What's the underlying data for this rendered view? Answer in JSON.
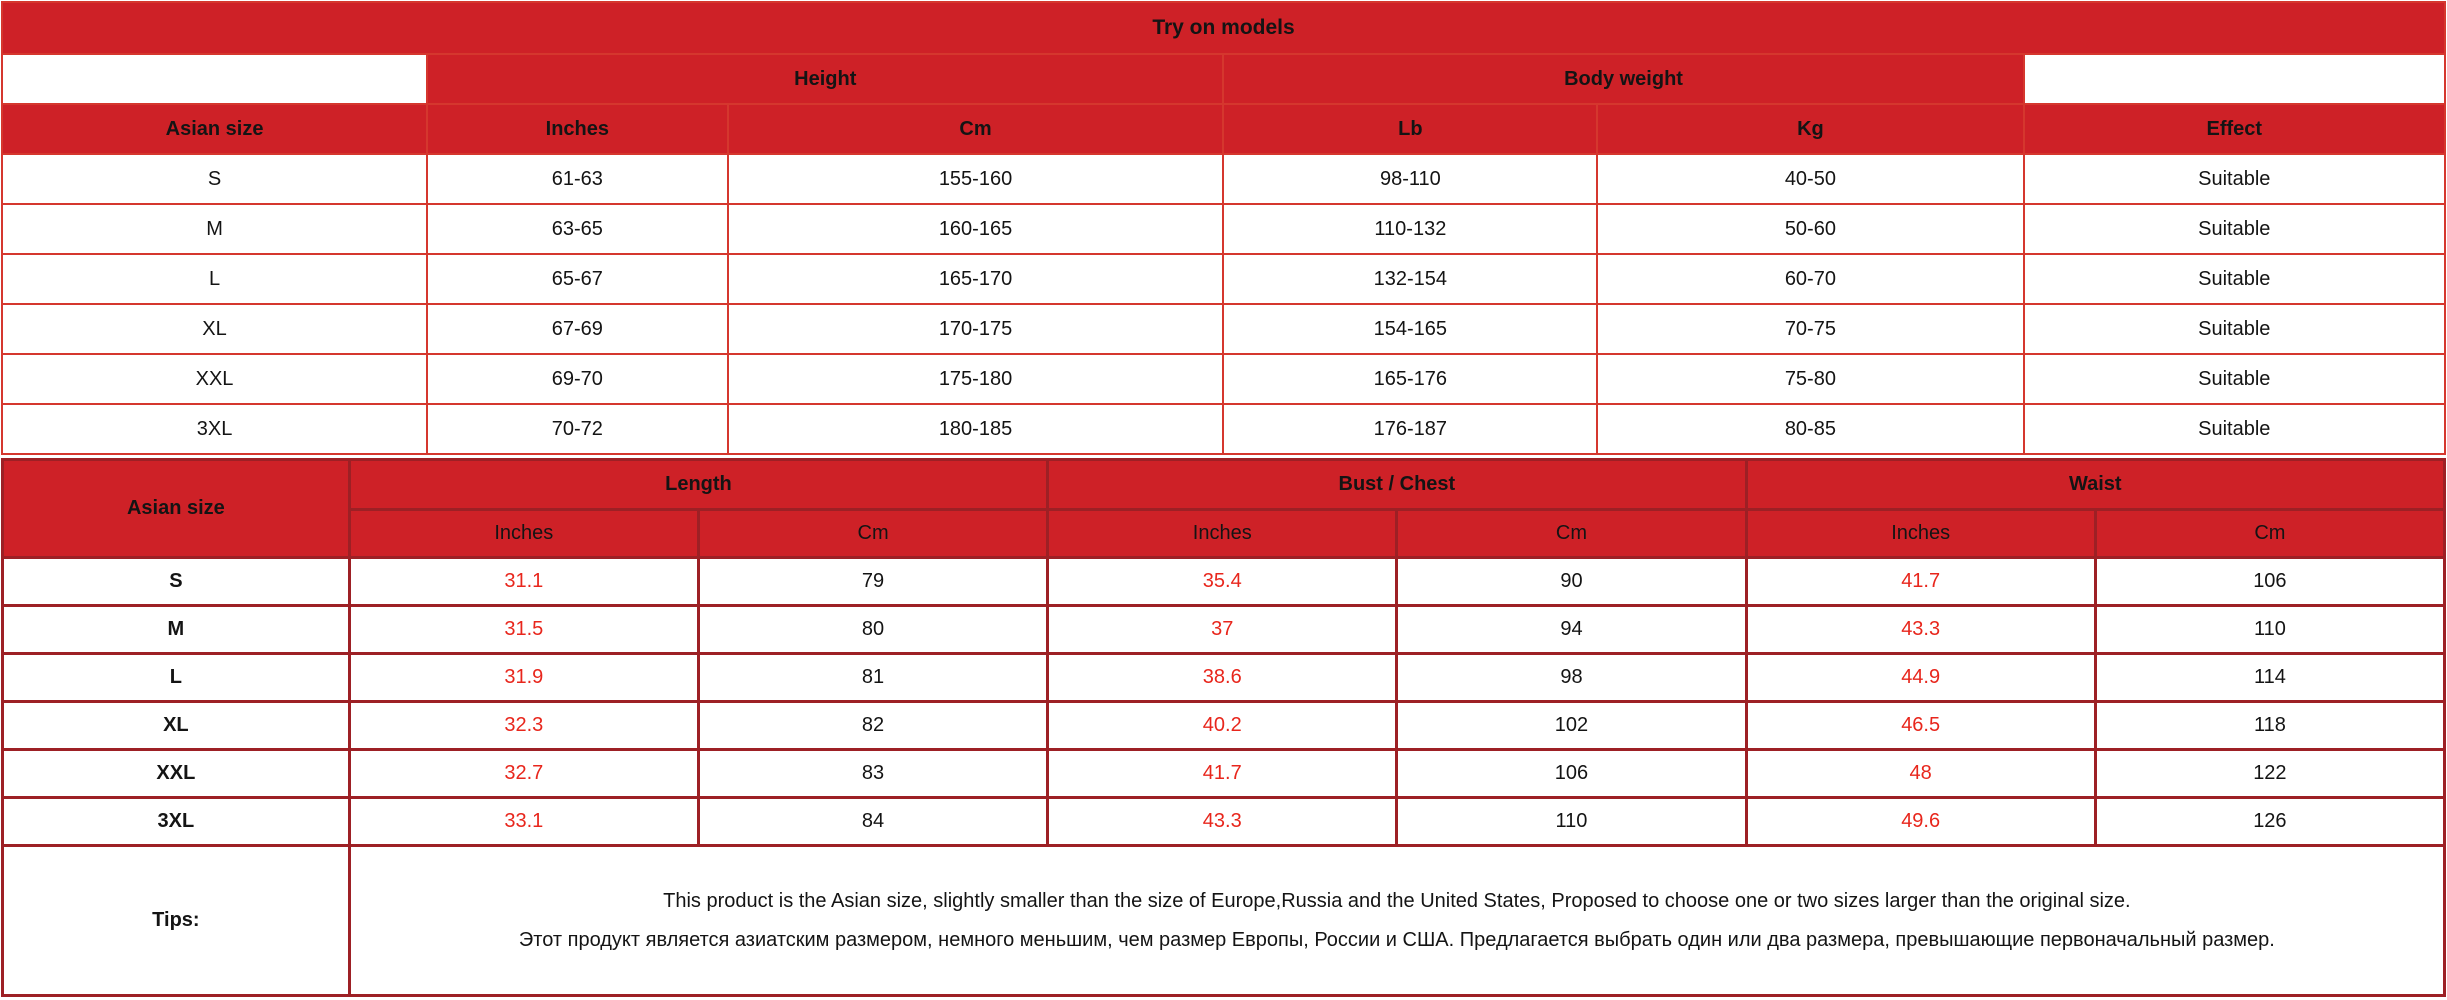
{
  "colors": {
    "header_bg": "#ce2127",
    "header_text": "#ffffff",
    "table1_border": "#d5372e",
    "table2_border": "#9d2025",
    "inches_text": "#e8261c",
    "body_text": "#141414",
    "page_bg": "#ffffff"
  },
  "table1": {
    "title": "Try on models",
    "groups": {
      "height": "Height",
      "body_weight": "Body weight"
    },
    "columns": [
      "Asian size",
      "Inches",
      "Cm",
      "Lb",
      "Kg",
      "Effect"
    ],
    "rows": [
      [
        "S",
        "61-63",
        "155-160",
        "98-110",
        "40-50",
        "Suitable"
      ],
      [
        "M",
        "63-65",
        "160-165",
        "110-132",
        "50-60",
        "Suitable"
      ],
      [
        "L",
        "65-67",
        "165-170",
        "132-154",
        "60-70",
        "Suitable"
      ],
      [
        "XL",
        "67-69",
        "170-175",
        "154-165",
        "70-75",
        "Suitable"
      ],
      [
        "XXL",
        "69-70",
        "175-180",
        "165-176",
        "75-80",
        "Suitable"
      ],
      [
        "3XL",
        "70-72",
        "180-185",
        "176-187",
        "80-85",
        "Suitable"
      ]
    ]
  },
  "table2": {
    "corner_header": "Asian size",
    "groups": [
      "Length",
      "Bust / Chest",
      "Waist"
    ],
    "sub_headers": [
      "Inches",
      "Cm",
      "Inches",
      "Cm",
      "Inches",
      "Cm"
    ],
    "rows": [
      {
        "size": "S",
        "values": [
          "31.1",
          "79",
          "35.4",
          "90",
          "41.7",
          "106"
        ]
      },
      {
        "size": "M",
        "values": [
          "31.5",
          "80",
          "37",
          "94",
          "43.3",
          "110"
        ]
      },
      {
        "size": "L",
        "values": [
          "31.9",
          "81",
          "38.6",
          "98",
          "44.9",
          "114"
        ]
      },
      {
        "size": "XL",
        "values": [
          "32.3",
          "82",
          "40.2",
          "102",
          "46.5",
          "118"
        ]
      },
      {
        "size": "XXL",
        "values": [
          "32.7",
          "83",
          "41.7",
          "106",
          "48",
          "122"
        ]
      },
      {
        "size": "3XL",
        "values": [
          "33.1",
          "84",
          "43.3",
          "110",
          "49.6",
          "126"
        ]
      }
    ],
    "tips_label": "Tips:",
    "tips_lines": [
      "This product is the Asian size, slightly smaller than the size of Europe,Russia and the United States, Proposed to choose one or two sizes larger than the original size.",
      "Этот продукт является азиатским размером, немного меньшим, чем размер Европы, России и США. Предлагается выбрать один или два размера, превышающие первоначальный размер."
    ]
  }
}
